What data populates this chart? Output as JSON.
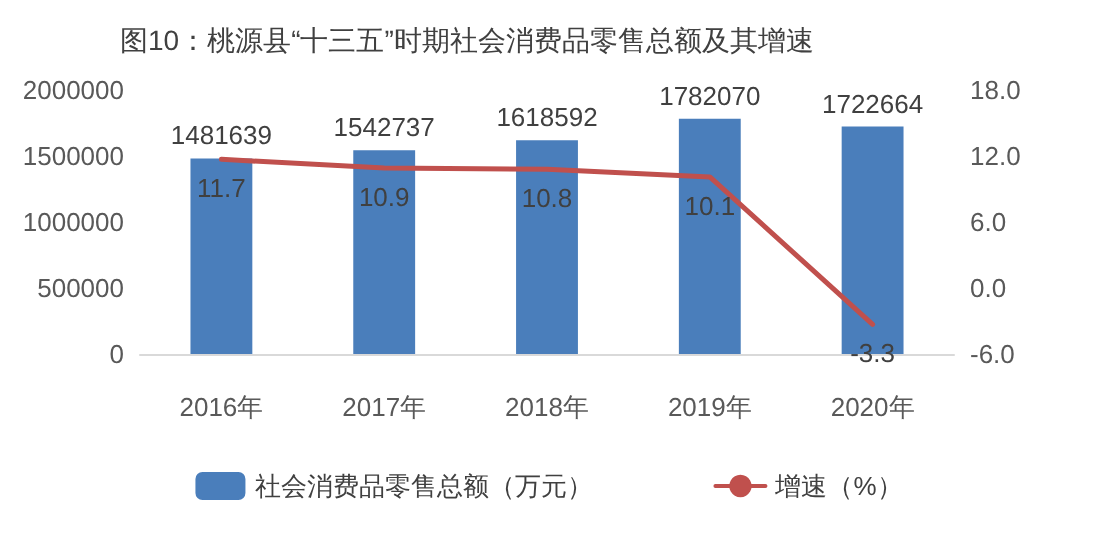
{
  "chart_data": {
    "type": "bar",
    "title": "图10：桃源县“十三五”时期社会消费品零售总额及其增速",
    "categories": [
      "2016年",
      "2017年",
      "2018年",
      "2019年",
      "2020年"
    ],
    "series": [
      {
        "name": "社会消费品零售总额（万元）",
        "color": "#4a7ebb",
        "values": [
          1481639,
          1542737,
          1618592,
          1782070,
          1722664
        ]
      },
      {
        "name": "增速（%）",
        "type": "line",
        "axis": "y2",
        "color": "#c0504d",
        "values": [
          11.7,
          10.9,
          10.8,
          10.1,
          -3.3
        ]
      }
    ],
    "ylim": [
      0,
      2000000
    ],
    "yticks": [
      0,
      500000,
      1000000,
      1500000,
      2000000
    ],
    "y2lim": [
      -6,
      18
    ],
    "y2ticks": [
      {
        "value": -6,
        "label": "-6.0"
      },
      {
        "value": 0,
        "label": "0.0"
      },
      {
        "value": 6,
        "label": "6.0"
      },
      {
        "value": 12,
        "label": "12.0"
      },
      {
        "value": 18,
        "label": "18.0"
      }
    ],
    "data_labels": true,
    "grid": false,
    "legend": "bottom",
    "marker": "none",
    "line_style": "solid"
  }
}
